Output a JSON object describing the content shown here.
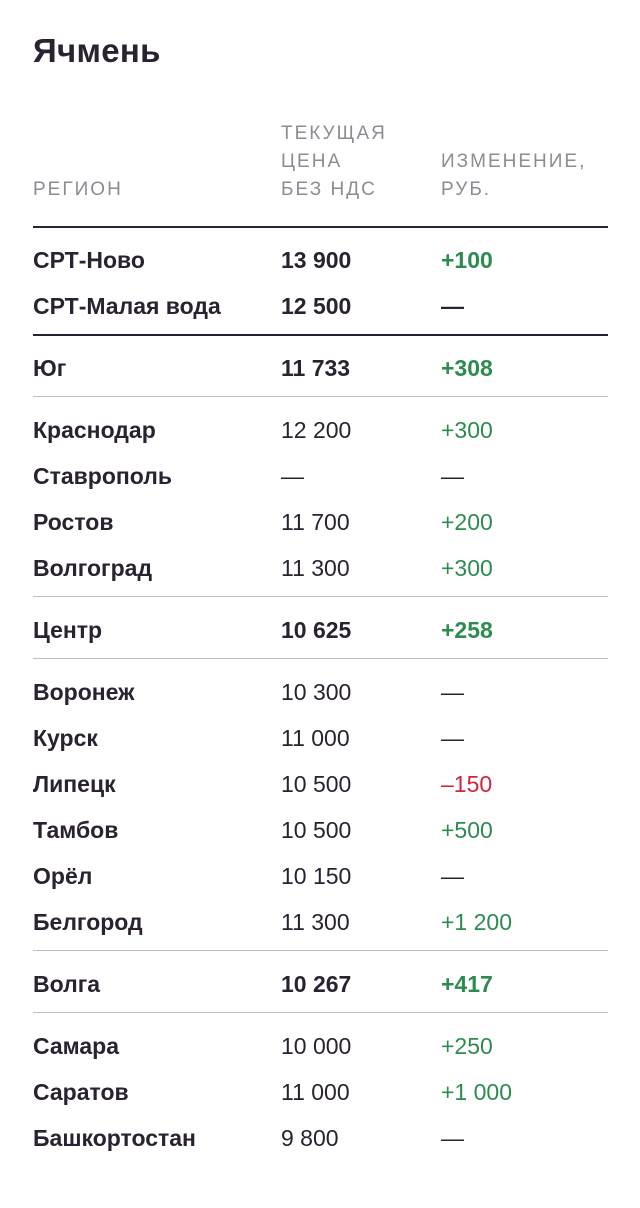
{
  "title": "Ячмень",
  "header": {
    "region": "РЕГИОН",
    "price": "ТЕКУЩАЯ\nЦЕНА\nБЕЗ НДС",
    "change": "ИЗМЕНЕНИЕ,\nРУБ."
  },
  "colors": {
    "positive": "#2e8b50",
    "negative": "#d3243c",
    "text": "#2a2230",
    "muted": "#8f8a93"
  },
  "rows": [
    {
      "region": "СРТ-Ново",
      "price": "13 900",
      "change": "+100",
      "trend": "pos",
      "bold": true
    },
    {
      "region": "СРТ-Малая вода",
      "price": "12 500",
      "change": "—",
      "trend": "neu",
      "bold": true
    },
    {
      "region": "Юг",
      "price": "11 733",
      "change": "+308",
      "trend": "pos",
      "bold": true
    },
    {
      "region": "Краснодар",
      "price": "12 200",
      "change": "+300",
      "trend": "pos",
      "bold": false
    },
    {
      "region": "Ставрополь",
      "price": "—",
      "change": "—",
      "trend": "neu",
      "bold": false
    },
    {
      "region": "Ростов",
      "price": "11 700",
      "change": "+200",
      "trend": "pos",
      "bold": false
    },
    {
      "region": "Волгоград",
      "price": "11 300",
      "change": "+300",
      "trend": "pos",
      "bold": false
    },
    {
      "region": "Центр",
      "price": "10 625",
      "change": "+258",
      "trend": "pos",
      "bold": true
    },
    {
      "region": "Воронеж",
      "price": "10 300",
      "change": "—",
      "trend": "neu",
      "bold": false
    },
    {
      "region": "Курск",
      "price": "11 000",
      "change": "—",
      "trend": "neu",
      "bold": false
    },
    {
      "region": "Липецк",
      "price": "10 500",
      "change": "–150",
      "trend": "neg",
      "bold": false
    },
    {
      "region": "Тамбов",
      "price": "10 500",
      "change": "+500",
      "trend": "pos",
      "bold": false
    },
    {
      "region": "Орёл",
      "price": "10 150",
      "change": "—",
      "trend": "neu",
      "bold": false
    },
    {
      "region": "Белгород",
      "price": "11 300",
      "change": "+1 200",
      "trend": "pos",
      "bold": false
    },
    {
      "region": "Волга",
      "price": "10 267",
      "change": "+417",
      "trend": "pos",
      "bold": true
    },
    {
      "region": "Самара",
      "price": "10 000",
      "change": "+250",
      "trend": "pos",
      "bold": false
    },
    {
      "region": "Саратов",
      "price": "11 000",
      "change": "+1 000",
      "trend": "pos",
      "bold": false
    },
    {
      "region": "Башкортостан",
      "price": "9 800",
      "change": "—",
      "trend": "neu",
      "bold": false
    }
  ]
}
